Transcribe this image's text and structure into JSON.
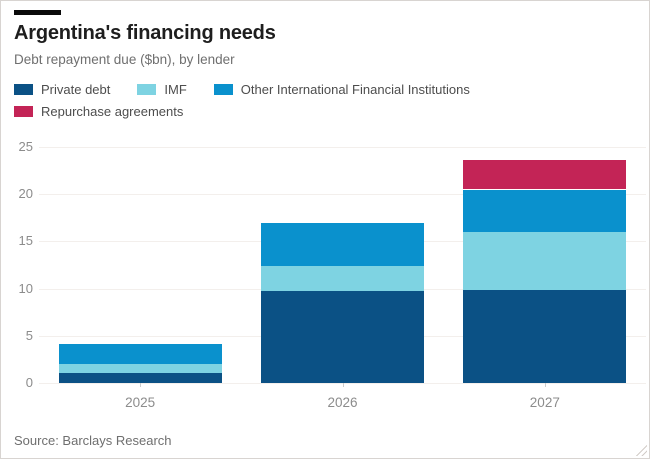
{
  "header": {
    "title": "Argentina's financing needs",
    "subtitle": "Debt repayment due ($bn), by lender"
  },
  "source": "Source: Barclays Research",
  "colors": {
    "private_debt": "#0b5185",
    "imf": "#7ed3e2",
    "other_ifis": "#0a91cd",
    "repurchase_agreements": "#c32456",
    "title_text": "#1e1e1e",
    "muted_text": "#6f6f6f",
    "axis_text": "#8c8c8c",
    "gridline": "#f3efec",
    "accent_bar": "#0a0a0a"
  },
  "chart_data": {
    "type": "bar",
    "stacked": true,
    "title": "Argentina's financing needs",
    "subtitle": "Debt repayment due ($bn), by lender",
    "categories": [
      "2025",
      "2026",
      "2027"
    ],
    "series": [
      {
        "name": "Private debt",
        "color": "#0b5185",
        "values": [
          1.1,
          9.8,
          9.9
        ]
      },
      {
        "name": "IMF",
        "color": "#7ed3e2",
        "values": [
          0.9,
          2.6,
          6.1
        ]
      },
      {
        "name": "Other International Financial Institutions",
        "color": "#0a91cd",
        "values": [
          2.1,
          4.5,
          4.5
        ]
      },
      {
        "name": "Repurchase agreements",
        "color": "#c32456",
        "values": [
          0,
          0,
          3.1
        ]
      }
    ],
    "totals": [
      4.1,
      16.9,
      23.6
    ],
    "xlabel": "",
    "ylabel": "",
    "ylim": [
      0,
      25
    ],
    "yticks": [
      0,
      5,
      10,
      15,
      20,
      25
    ],
    "grid": true,
    "legend_position": "top"
  }
}
